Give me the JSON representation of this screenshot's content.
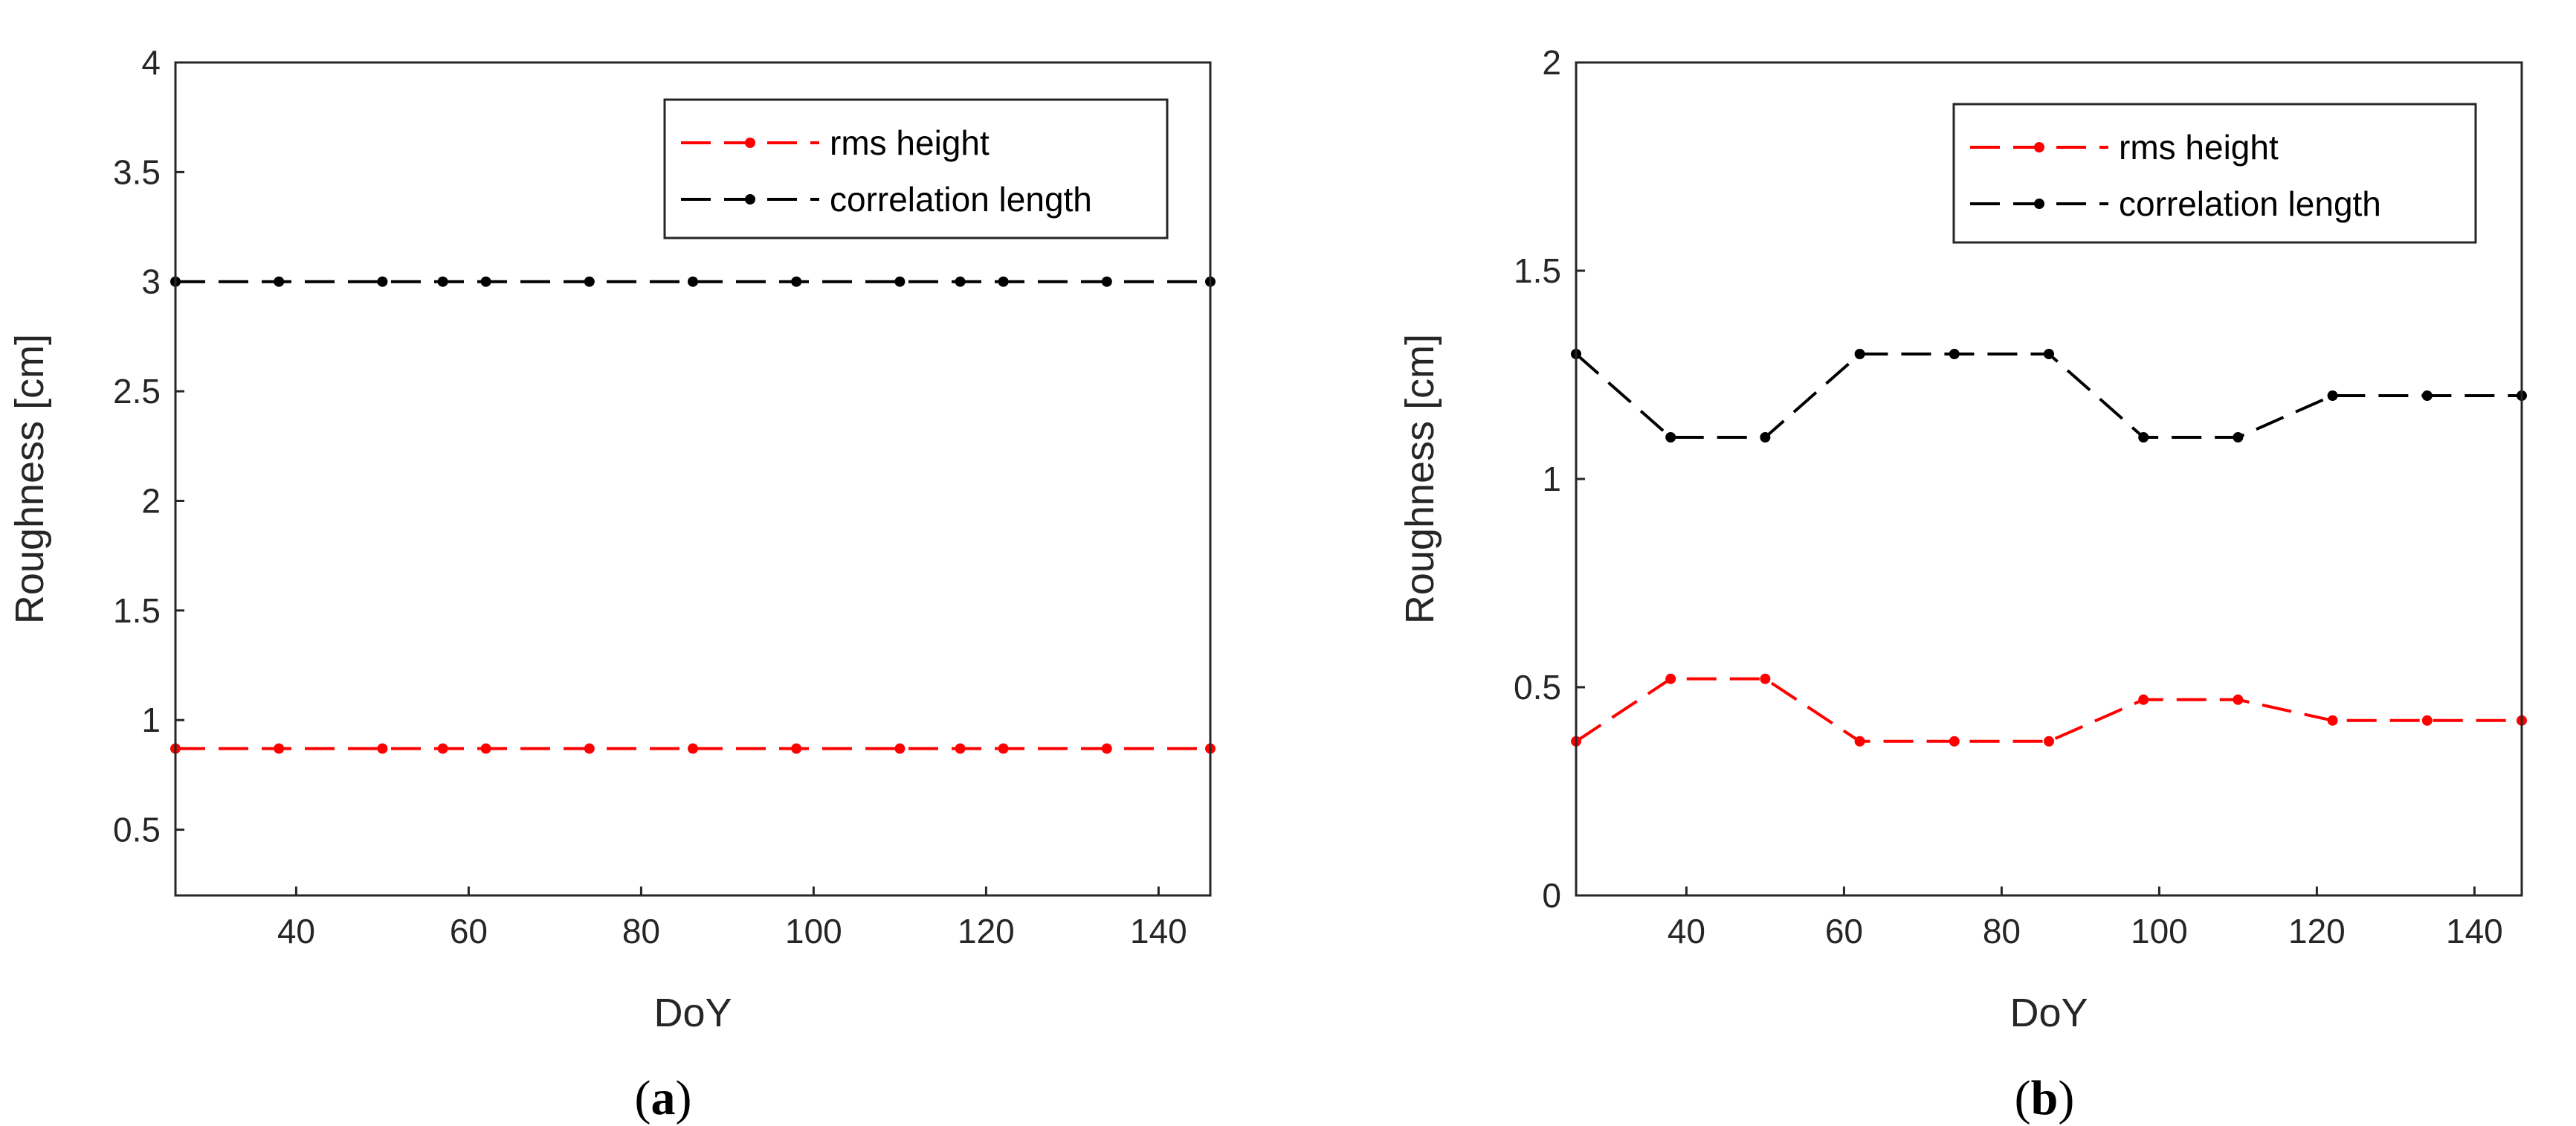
{
  "chart_data": [
    {
      "type": "line",
      "panel_label": "a",
      "xlabel": "DoY",
      "ylabel": "Roughness [cm]",
      "xlim": [
        26,
        146
      ],
      "ylim": [
        0.2,
        4
      ],
      "xticks": [
        40,
        60,
        80,
        100,
        120,
        140
      ],
      "yticks": [
        0.5,
        1,
        1.5,
        2,
        2.5,
        3,
        3.5,
        4
      ],
      "yticklabels": [
        "0.5",
        "1",
        "1.5",
        "2",
        "2.5",
        "3",
        "3.5",
        "4"
      ],
      "legend_position": "top-right",
      "x": [
        26,
        38,
        50,
        57,
        62,
        74,
        86,
        98,
        110,
        117,
        122,
        134,
        146
      ],
      "series": [
        {
          "name": "rms height",
          "color": "#ff0000",
          "values": [
            0.87,
            0.87,
            0.87,
            0.87,
            0.87,
            0.87,
            0.87,
            0.87,
            0.87,
            0.87,
            0.87,
            0.87,
            0.87
          ]
        },
        {
          "name": "correlation length",
          "color": "#000000",
          "values": [
            3,
            3,
            3,
            3,
            3,
            3,
            3,
            3,
            3,
            3,
            3,
            3,
            3
          ]
        }
      ]
    },
    {
      "type": "line",
      "panel_label": "b",
      "xlabel": "DoY",
      "ylabel": "Roughness [cm]",
      "xlim": [
        26,
        146
      ],
      "ylim": [
        0,
        2
      ],
      "xticks": [
        40,
        60,
        80,
        100,
        120,
        140
      ],
      "yticks": [
        0,
        0.5,
        1,
        1.5,
        2
      ],
      "yticklabels": [
        "0",
        "0.5",
        "1",
        "1.5",
        "2"
      ],
      "legend_position": "top-right",
      "x": [
        26,
        38,
        50,
        62,
        74,
        86,
        98,
        110,
        122,
        134,
        146
      ],
      "series": [
        {
          "name": "rms height",
          "color": "#ff0000",
          "values": [
            0.37,
            0.52,
            0.52,
            0.37,
            0.37,
            0.37,
            0.47,
            0.47,
            0.42,
            0.42,
            0.42
          ]
        },
        {
          "name": "correlation length",
          "color": "#000000",
          "values": [
            1.3,
            1.1,
            1.1,
            1.3,
            1.3,
            1.3,
            1.1,
            1.1,
            1.2,
            1.2,
            1.2
          ]
        }
      ]
    }
  ]
}
